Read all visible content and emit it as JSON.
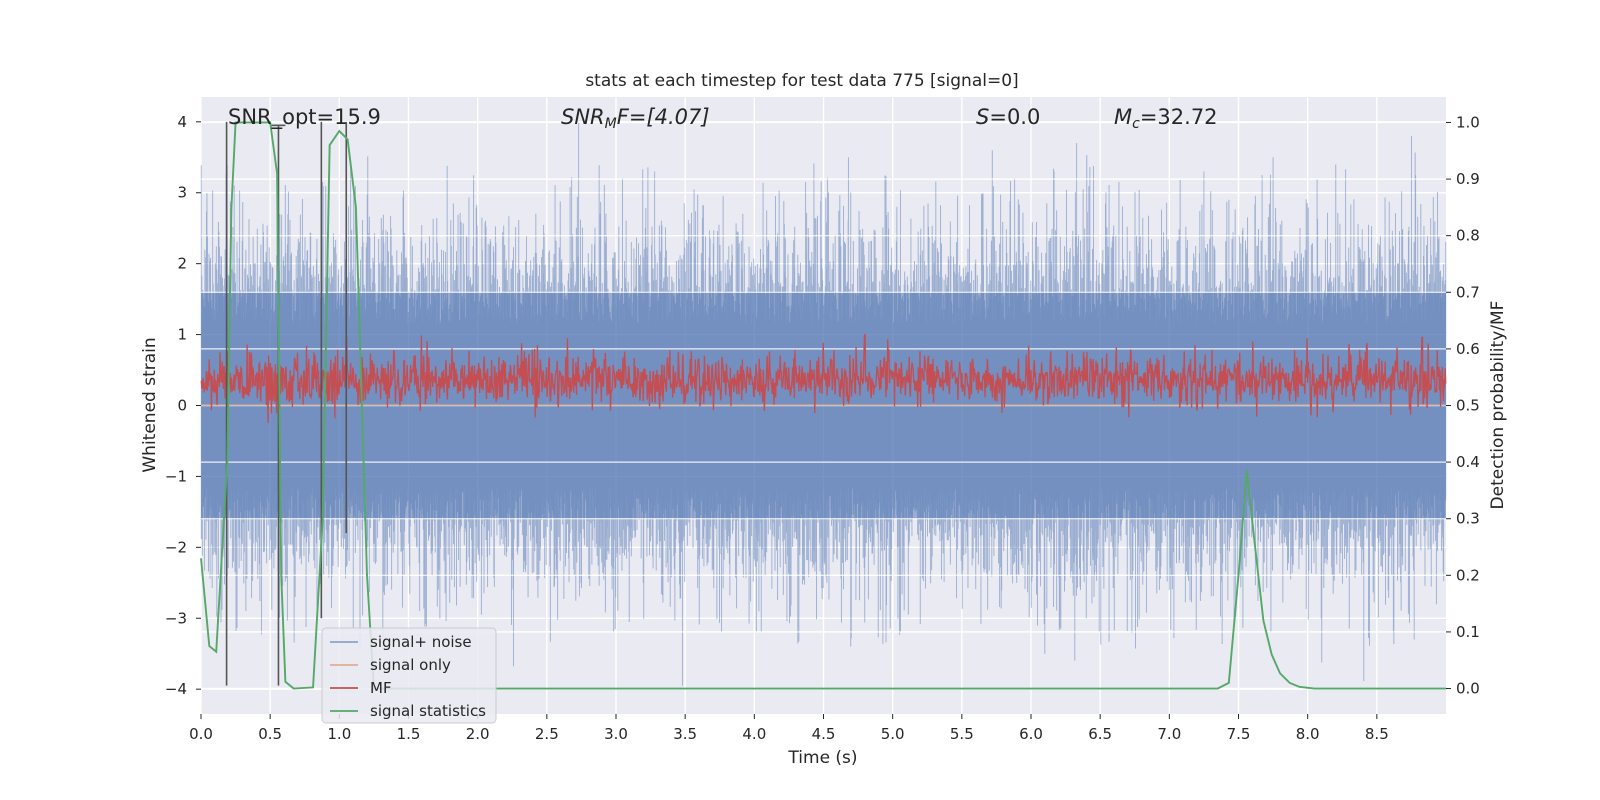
{
  "chart_data": {
    "type": "line",
    "title": "stats at each timestep for test data 775 [signal=0]",
    "xlabel": "Time (s)",
    "ylabel": "Whitened strain",
    "y2label": "Detection probability/MF",
    "xlim": [
      0,
      9.0
    ],
    "ylim": [
      -4.35,
      4.35
    ],
    "y2lim": [
      -0.045,
      1.045
    ],
    "xticks": [
      0.0,
      0.5,
      1.0,
      1.5,
      2.0,
      2.5,
      3.0,
      3.5,
      4.0,
      4.5,
      5.0,
      5.5,
      6.0,
      6.5,
      7.0,
      7.5,
      8.0,
      8.5
    ],
    "xtick_labels": [
      "0.0",
      "0.5",
      "1.0",
      "1.5",
      "2.0",
      "2.5",
      "3.0",
      "3.5",
      "4.0",
      "4.5",
      "5.0",
      "5.5",
      "6.0",
      "6.5",
      "7.0",
      "7.5",
      "8.0",
      "8.5"
    ],
    "yticks": [
      -4,
      -3,
      -2,
      -1,
      0,
      1,
      2,
      3,
      4
    ],
    "ytick_labels": [
      "−4",
      "−3",
      "−2",
      "−1",
      "0",
      "1",
      "2",
      "3",
      "4"
    ],
    "y2ticks": [
      0.0,
      0.1,
      0.2,
      0.3,
      0.4,
      0.5,
      0.6,
      0.7,
      0.8,
      0.9,
      1.0
    ],
    "y2tick_labels": [
      "0.0",
      "0.1",
      "0.2",
      "0.3",
      "0.4",
      "0.5",
      "0.6",
      "0.7",
      "0.8",
      "0.9",
      "1.0"
    ],
    "grid": true,
    "legend_position": "lower-left",
    "annotations": {
      "snr_opt": "SNR_opt=15.9",
      "snr_mf_sym": "SNR",
      "snr_mf_sub": "M",
      "snr_mf_rest": "F=[4.07]",
      "s_sym": "S",
      "s_rest": "=0.0",
      "mc_sym": "M",
      "mc_sub": "c",
      "mc_rest": "=32.72"
    },
    "series": [
      {
        "name": "signal+ noise",
        "color": "#4c72b0",
        "axis": "left",
        "style": "noise",
        "envelope_upper": 1.6,
        "envelope_lower": -1.6,
        "peaks": [
          [
            0.24,
            3.1
          ],
          [
            0.57,
            2.7
          ],
          [
            1.05,
            3.5
          ],
          [
            2.73,
            4.0
          ],
          [
            3.48,
            -3.95
          ],
          [
            4.68,
            3.5
          ],
          [
            5.72,
            3.6
          ],
          [
            6.33,
            3.7
          ],
          [
            7.25,
            3.3
          ],
          [
            7.75,
            3.5
          ],
          [
            8.75,
            3.8
          ],
          [
            8.77,
            -3.3
          ],
          [
            4.05,
            -3.2
          ],
          [
            6.1,
            -3.5
          ]
        ]
      },
      {
        "name": "signal only",
        "color": "#dd8452",
        "axis": "left",
        "style": "line",
        "points": [
          [
            0.0,
            0.0
          ],
          [
            9.0,
            0.0
          ]
        ]
      },
      {
        "name": "MF",
        "color": "#c44e52",
        "axis": "right",
        "style": "noise",
        "mean": 0.545,
        "amplitude": 0.04,
        "peaks": [
          [
            1.05,
            0.62
          ],
          [
            4.8,
            0.625
          ],
          [
            8.83,
            0.62
          ]
        ]
      },
      {
        "name": "signal statistics",
        "color": "#55a868",
        "axis": "right",
        "style": "line",
        "points": [
          [
            0.0,
            0.23
          ],
          [
            0.06,
            0.075
          ],
          [
            0.11,
            0.065
          ],
          [
            0.19,
            0.4
          ],
          [
            0.22,
            0.85
          ],
          [
            0.25,
            1.0
          ],
          [
            0.5,
            1.0
          ],
          [
            0.55,
            0.91
          ],
          [
            0.58,
            0.2
          ],
          [
            0.61,
            0.012
          ],
          [
            0.67,
            0.0
          ],
          [
            0.81,
            0.002
          ],
          [
            0.88,
            0.3
          ],
          [
            0.93,
            0.96
          ],
          [
            1.0,
            0.985
          ],
          [
            1.06,
            0.97
          ],
          [
            1.12,
            0.85
          ],
          [
            1.2,
            0.2
          ],
          [
            1.25,
            0.0
          ],
          [
            7.35,
            0.0
          ],
          [
            7.43,
            0.01
          ],
          [
            7.5,
            0.2
          ],
          [
            7.56,
            0.385
          ],
          [
            7.62,
            0.25
          ],
          [
            7.68,
            0.12
          ],
          [
            7.74,
            0.06
          ],
          [
            7.8,
            0.027
          ],
          [
            7.87,
            0.01
          ],
          [
            7.94,
            0.003
          ],
          [
            8.05,
            0.0
          ],
          [
            9.0,
            0.0
          ]
        ]
      }
    ],
    "markers": [
      {
        "x": 0.185,
        "y_from": -3.95,
        "y_to": 4.0
      },
      {
        "x": 0.56,
        "y_from": -3.95,
        "y_to": 3.95
      },
      {
        "x": 0.87,
        "y_from": -3.0,
        "y_to": 4.0
      },
      {
        "x": 1.05,
        "y_from": -1.8,
        "y_to": 4.0
      }
    ]
  }
}
